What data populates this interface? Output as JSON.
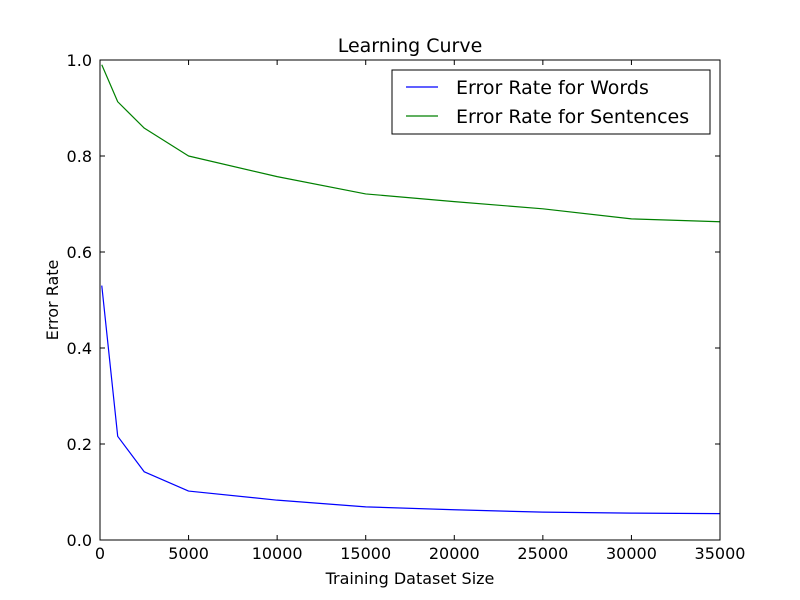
{
  "chart_data": {
    "type": "line",
    "title": "Learning Curve",
    "xlabel": "Training Dataset Size",
    "ylabel": "Error Rate",
    "xlim": [
      0,
      35000
    ],
    "ylim": [
      0.0,
      1.0
    ],
    "xticks": [
      0,
      5000,
      10000,
      15000,
      20000,
      25000,
      30000,
      35000
    ],
    "xtick_labels": [
      "0",
      "5000",
      "10000",
      "15000",
      "20000",
      "25000",
      "30000",
      "35000"
    ],
    "yticks": [
      0.0,
      0.2,
      0.4,
      0.6,
      0.8,
      1.0
    ],
    "ytick_labels": [
      "0.0",
      "0.2",
      "0.4",
      "0.6",
      "0.8",
      "1.0"
    ],
    "grid": false,
    "legend_position": "top-right",
    "series": [
      {
        "name": "Error Rate for Words",
        "color": "#0000ff",
        "x": [
          100,
          1000,
          2500,
          5000,
          10000,
          15000,
          20000,
          25000,
          30000,
          35000
        ],
        "y": [
          0.53,
          0.216,
          0.142,
          0.102,
          0.083,
          0.069,
          0.063,
          0.058,
          0.056,
          0.055
        ]
      },
      {
        "name": "Error Rate for Sentences",
        "color": "#008000",
        "x": [
          100,
          1000,
          2500,
          5000,
          10000,
          15000,
          20000,
          25000,
          30000,
          35000
        ],
        "y": [
          0.99,
          0.913,
          0.858,
          0.8,
          0.757,
          0.721,
          0.705,
          0.69,
          0.669,
          0.663
        ]
      }
    ]
  }
}
